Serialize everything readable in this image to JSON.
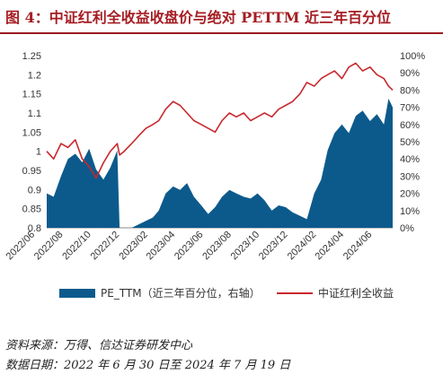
{
  "title": "图 4：中证红利全收益收盘价与绝对 PETTM 近三年百分位",
  "colors": {
    "title": "#a51d23",
    "area": "#0c5a8c",
    "line": "#c8282d"
  },
  "notes": {
    "source": "资料来源：万得、信达证券研发中心",
    "date": "数据日期：2022 年 6 月 30 日至 2024 年 7 月 19 日"
  },
  "chart_data": {
    "type": "area",
    "x_ticks": [
      "2022/06",
      "2022/08",
      "2022/10",
      "2022/12",
      "2023/02",
      "2023/04",
      "2023/06",
      "2023/08",
      "2023/10",
      "2023/12",
      "2024/02",
      "2024/04",
      "2024/06"
    ],
    "left_axis": {
      "ticks": [
        "0.8",
        "0.85",
        "0.9",
        "0.95",
        "1",
        "1.05",
        "1.1",
        "1.15",
        "1.2",
        "1.25"
      ],
      "ylim": [
        0.8,
        1.25
      ]
    },
    "right_axis": {
      "ticks": [
        "0%",
        "10%",
        "20%",
        "30%",
        "40%",
        "50%",
        "60%",
        "70%",
        "80%",
        "90%",
        "100%"
      ],
      "ylim": [
        0,
        100
      ]
    },
    "legend": [
      "PE_TTM（近三年百分位，右轴）",
      "中证红利全收益"
    ],
    "x": [
      "2022-06-30",
      "2022-07-15",
      "2022-07-31",
      "2022-08-15",
      "2022-08-31",
      "2022-09-15",
      "2022-09-30",
      "2022-10-15",
      "2022-10-31",
      "2022-11-15",
      "2022-11-30",
      "2022-12-05",
      "2022-12-15",
      "2022-12-31",
      "2023-01-15",
      "2023-01-31",
      "2023-02-15",
      "2023-02-28",
      "2023-03-15",
      "2023-03-31",
      "2023-04-15",
      "2023-04-30",
      "2023-05-15",
      "2023-05-31",
      "2023-06-15",
      "2023-06-30",
      "2023-07-15",
      "2023-07-31",
      "2023-08-15",
      "2023-08-31",
      "2023-09-15",
      "2023-09-30",
      "2023-10-15",
      "2023-10-31",
      "2023-11-15",
      "2023-11-30",
      "2023-12-15",
      "2023-12-31",
      "2024-01-15",
      "2024-01-31",
      "2024-02-15",
      "2024-02-29",
      "2024-03-15",
      "2024-03-31",
      "2024-04-15",
      "2024-04-30",
      "2024-05-15",
      "2024-05-31",
      "2024-06-15",
      "2024-06-30",
      "2024-07-10",
      "2024-07-19"
    ],
    "series": [
      {
        "name": "PE_TTM（近三年百分位，右轴）",
        "axis": "right",
        "values": [
          20,
          18,
          30,
          40,
          43,
          38,
          46,
          34,
          28,
          35,
          45,
          0,
          0,
          0,
          2,
          4,
          6,
          10,
          20,
          24,
          22,
          26,
          18,
          13,
          8,
          12,
          18,
          22,
          20,
          18,
          17,
          20,
          16,
          10,
          13,
          12,
          9,
          7,
          5,
          20,
          28,
          45,
          55,
          60,
          55,
          65,
          68,
          62,
          66,
          60,
          75,
          70
        ]
      },
      {
        "name": "中证红利全收益",
        "axis": "left",
        "values": [
          1.0,
          0.98,
          1.02,
          1.01,
          1.03,
          0.98,
          0.96,
          0.93,
          0.97,
          1.0,
          1.02,
          0.99,
          1.0,
          1.02,
          1.04,
          1.06,
          1.07,
          1.08,
          1.11,
          1.13,
          1.12,
          1.1,
          1.08,
          1.07,
          1.06,
          1.05,
          1.08,
          1.1,
          1.09,
          1.1,
          1.08,
          1.09,
          1.1,
          1.09,
          1.11,
          1.12,
          1.13,
          1.15,
          1.18,
          1.17,
          1.19,
          1.2,
          1.21,
          1.19,
          1.22,
          1.23,
          1.21,
          1.22,
          1.2,
          1.19,
          1.17,
          1.16
        ]
      }
    ]
  }
}
